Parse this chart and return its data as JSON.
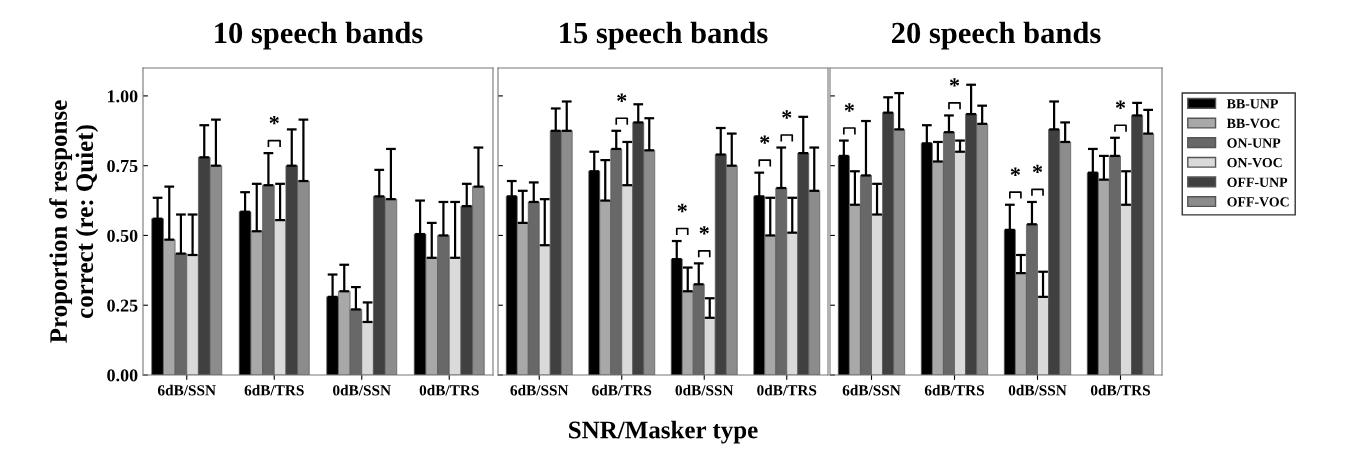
{
  "chart_data": [
    {
      "type": "bar",
      "title": "10 speech bands",
      "ylabel": "Proportion of response\ncorrect (re: Quiet)",
      "categories": [
        "6dB/SSN",
        "6dB/TRS",
        "0dB/SSN",
        "0dB/TRS"
      ],
      "ylim": [
        0,
        1.1
      ],
      "yticks": [
        {
          "value": 0,
          "label": "0.00"
        },
        {
          "value": 0.25,
          "label": "0.25"
        },
        {
          "value": 0.5,
          "label": "0.50"
        },
        {
          "value": 0.75,
          "label": "0.75"
        },
        {
          "value": 1,
          "label": "1.00"
        }
      ],
      "grid": false,
      "legend": false,
      "series": [
        {
          "color": "#000000",
          "values": [
            0.56,
            0.585,
            0.28,
            0.505
          ],
          "errors": [
            [
              0.56,
              0.635
            ],
            [
              0.585,
              0.655
            ],
            [
              0.28,
              0.36
            ],
            [
              0.505,
              0.625
            ]
          ]
        },
        {
          "color": "#a8a8a8",
          "values": [
            0.485,
            0.515,
            0.3,
            0.42
          ],
          "errors": [
            [
              0.485,
              0.675
            ],
            [
              0.515,
              0.685
            ],
            [
              0.3,
              0.395
            ],
            [
              0.42,
              0.545
            ]
          ]
        },
        {
          "color": "#686868",
          "values": [
            0.435,
            0.68,
            0.235,
            0.5
          ],
          "errors": [
            [
              0.435,
              0.575
            ],
            [
              0.68,
              0.795
            ],
            [
              0.235,
              0.315
            ],
            [
              0.5,
              0.62
            ]
          ]
        },
        {
          "color": "#dadada",
          "values": [
            0.43,
            0.555,
            0.19,
            0.42
          ],
          "errors": [
            [
              0.43,
              0.575
            ],
            [
              0.555,
              0.685
            ],
            [
              0.19,
              0.26
            ],
            [
              0.42,
              0.62
            ]
          ]
        },
        {
          "color": "#404040",
          "values": [
            0.78,
            0.75,
            0.64,
            0.605
          ],
          "errors": [
            [
              0.78,
              0.895
            ],
            [
              0.75,
              0.88
            ],
            [
              0.64,
              0.735
            ],
            [
              0.605,
              0.685
            ]
          ]
        },
        {
          "color": "#8c8c8c",
          "values": [
            0.75,
            0.695,
            0.63,
            0.675
          ],
          "errors": [
            [
              0.75,
              0.915
            ],
            [
              0.695,
              0.915
            ],
            [
              0.63,
              0.81
            ],
            [
              0.675,
              0.815
            ]
          ]
        }
      ],
      "annotations": [
        "*"
      ]
    },
    {
      "type": "bar",
      "title": "15 speech bands",
      "xlabel": "SNR/Masker type",
      "categories": [
        "6dB/SSN",
        "6dB/TRS",
        "0dB/SSN",
        "0dB/TRS"
      ],
      "ylim": [
        0,
        1.1
      ],
      "tick_labels": "x",
      "grid": false,
      "legend": false,
      "series": [
        {
          "color": "#000000",
          "values": [
            0.64,
            0.73,
            0.415,
            0.64
          ],
          "errors": [
            [
              0.64,
              0.695
            ],
            [
              0.73,
              0.8
            ],
            [
              0.415,
              0.48
            ],
            [
              0.64,
              0.725
            ]
          ]
        },
        {
          "color": "#a8a8a8",
          "values": [
            0.545,
            0.625,
            0.3,
            0.5
          ],
          "errors": [
            [
              0.545,
              0.66
            ],
            [
              0.625,
              0.77
            ],
            [
              0.3,
              0.385
            ],
            [
              0.5,
              0.635
            ]
          ]
        },
        {
          "color": "#686868",
          "values": [
            0.62,
            0.81,
            0.325,
            0.67
          ],
          "errors": [
            [
              0.62,
              0.69
            ],
            [
              0.81,
              0.875
            ],
            [
              0.325,
              0.4
            ],
            [
              0.67,
              0.815
            ]
          ]
        },
        {
          "color": "#dadada",
          "values": [
            0.465,
            0.68,
            0.205,
            0.51
          ],
          "errors": [
            [
              0.465,
              0.63
            ],
            [
              0.68,
              0.835
            ],
            [
              0.205,
              0.275
            ],
            [
              0.51,
              0.635
            ]
          ]
        },
        {
          "color": "#404040",
          "values": [
            0.875,
            0.905,
            0.79,
            0.795
          ],
          "errors": [
            [
              0.875,
              0.955
            ],
            [
              0.905,
              0.97
            ],
            [
              0.79,
              0.885
            ],
            [
              0.795,
              0.925
            ]
          ]
        },
        {
          "color": "#8c8c8c",
          "values": [
            0.875,
            0.805,
            0.75,
            0.66
          ],
          "errors": [
            [
              0.875,
              0.98
            ],
            [
              0.805,
              0.92
            ],
            [
              0.75,
              0.865
            ],
            [
              0.66,
              0.815
            ]
          ]
        }
      ],
      "annotations": [
        "*",
        "*",
        "*",
        "*",
        "*"
      ]
    },
    {
      "type": "bar",
      "title": "20 speech bands",
      "categories": [
        "6dB/SSN",
        "6dB/TRS",
        "0dB/SSN",
        "0dB/TRS"
      ],
      "ylim": [
        0,
        1.1
      ],
      "tick_labels": "x",
      "grid": false,
      "legend": "right",
      "series": [
        {
          "name": "BB-UNP",
          "color": "#000000",
          "values": [
            0.785,
            0.83,
            0.52,
            0.725
          ],
          "errors": [
            [
              0.785,
              0.84
            ],
            [
              0.83,
              0.895
            ],
            [
              0.52,
              0.61
            ],
            [
              0.725,
              0.81
            ]
          ]
        },
        {
          "name": "BB-VOC",
          "color": "#a8a8a8",
          "values": [
            0.61,
            0.765,
            0.365,
            0.7
          ],
          "errors": [
            [
              0.61,
              0.73
            ],
            [
              0.765,
              0.835
            ],
            [
              0.365,
              0.43
            ],
            [
              0.7,
              0.785
            ]
          ]
        },
        {
          "name": "ON-UNP",
          "color": "#686868",
          "values": [
            0.715,
            0.87,
            0.54,
            0.785
          ],
          "errors": [
            [
              0.715,
              0.91
            ],
            [
              0.87,
              0.93
            ],
            [
              0.54,
              0.62
            ],
            [
              0.785,
              0.85
            ]
          ]
        },
        {
          "name": "ON-VOC",
          "color": "#dadada",
          "values": [
            0.575,
            0.8,
            0.28,
            0.61
          ],
          "errors": [
            [
              0.575,
              0.685
            ],
            [
              0.8,
              0.84
            ],
            [
              0.28,
              0.37
            ],
            [
              0.61,
              0.73
            ]
          ]
        },
        {
          "name": "OFF-UNP",
          "color": "#404040",
          "values": [
            0.94,
            0.935,
            0.88,
            0.93
          ],
          "errors": [
            [
              0.94,
              0.995
            ],
            [
              0.935,
              1.04
            ],
            [
              0.88,
              0.98
            ],
            [
              0.93,
              0.975
            ]
          ]
        },
        {
          "name": "OFF-VOC",
          "color": "#8c8c8c",
          "values": [
            0.88,
            0.9,
            0.835,
            0.865
          ],
          "errors": [
            [
              0.88,
              1.01
            ],
            [
              0.9,
              0.965
            ],
            [
              0.835,
              0.905
            ],
            [
              0.865,
              0.95
            ]
          ]
        }
      ],
      "annotations": [
        "*",
        "*",
        "*",
        "*",
        "*"
      ]
    }
  ]
}
